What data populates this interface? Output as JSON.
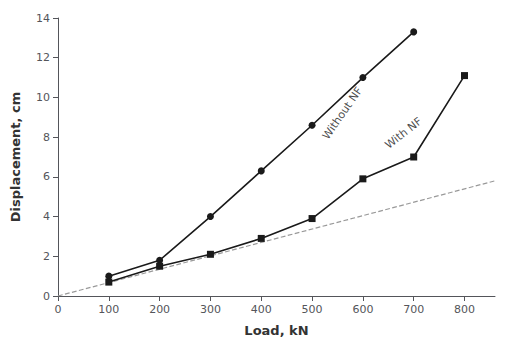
{
  "chart_data": {
    "type": "line",
    "xlabel": "Load, kN",
    "ylabel": "Displacement, cm",
    "xlim": [
      0,
      860
    ],
    "ylim": [
      0,
      14
    ],
    "xticks": [
      0,
      100,
      200,
      300,
      400,
      500,
      600,
      700,
      800
    ],
    "yticks": [
      0,
      2,
      4,
      6,
      8,
      10,
      12,
      14
    ],
    "grid": false,
    "series": [
      {
        "x": [
          100,
          200,
          300,
          400,
          500,
          600,
          700
        ],
        "values": [
          1.0,
          1.8,
          4.0,
          6.3,
          8.6,
          11.0,
          13.3
        ],
        "color": "#1a1a1a",
        "marker": "circle",
        "line_style": "solid"
      },
      {
        "x": [
          100,
          200,
          300,
          400,
          500,
          600,
          700,
          800
        ],
        "values": [
          0.7,
          1.5,
          2.1,
          2.9,
          3.9,
          5.9,
          7.0,
          11.1
        ],
        "color": "#1a1a1a",
        "marker": "square",
        "line_style": "solid"
      },
      {
        "x": [
          0,
          860
        ],
        "values": [
          0,
          5.8
        ],
        "color": "#999999",
        "marker": "none",
        "line_style": "dashed"
      }
    ],
    "annotations": [
      {
        "text": "Without NF",
        "x": 560,
        "y": 9.2,
        "color": "#1a1a1a"
      },
      {
        "text": "With NF",
        "x": 680,
        "y": 8.2,
        "color": "#1a1a1a"
      }
    ]
  }
}
